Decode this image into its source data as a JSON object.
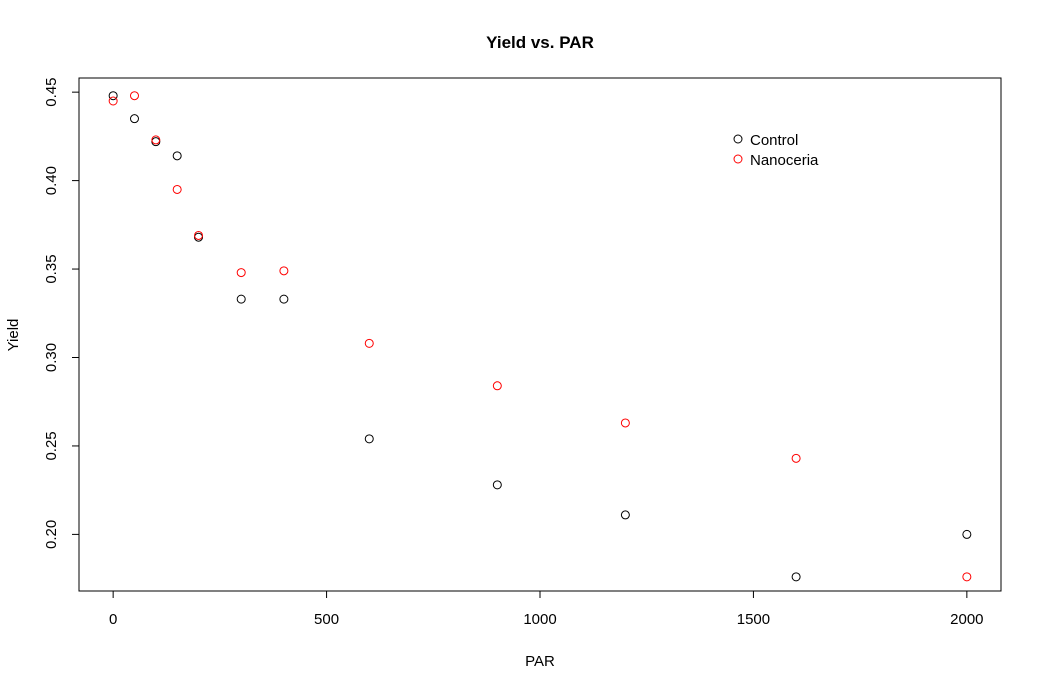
{
  "chart_data": {
    "type": "scatter",
    "title": "Yield vs. PAR",
    "xlabel": "PAR",
    "ylabel": "Yield",
    "xlim": [
      -80,
      2080
    ],
    "ylim": [
      0.168,
      0.458
    ],
    "xticks": [
      0,
      500,
      1000,
      1500,
      2000
    ],
    "yticks": [
      0.2,
      0.25,
      0.3,
      0.35,
      0.4,
      0.45
    ],
    "ytick_labels": [
      "0.20",
      "0.25",
      "0.30",
      "0.35",
      "0.40",
      "0.45"
    ],
    "grid": false,
    "legend_position": "top-right",
    "series": [
      {
        "name": "Control",
        "color": "#000000",
        "x": [
          0,
          50,
          100,
          150,
          200,
          300,
          400,
          600,
          900,
          1200,
          1600,
          2000
        ],
        "y": [
          0.448,
          0.435,
          0.422,
          0.414,
          0.368,
          0.333,
          0.333,
          0.254,
          0.228,
          0.211,
          0.176,
          0.2
        ]
      },
      {
        "name": "Nanoceria",
        "color": "#ff0000",
        "x": [
          0,
          50,
          100,
          150,
          200,
          300,
          400,
          600,
          900,
          1200,
          1600,
          2000
        ],
        "y": [
          0.445,
          0.448,
          0.423,
          0.395,
          0.369,
          0.348,
          0.349,
          0.308,
          0.284,
          0.263,
          0.243,
          0.176
        ]
      }
    ]
  }
}
